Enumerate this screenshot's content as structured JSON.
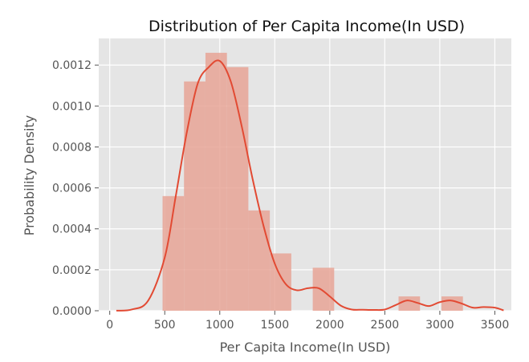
{
  "chart_data": {
    "type": "bar",
    "title": "Distribution of Per Capita Income(In USD)",
    "xlabel": "Per Capita Income(In USD)",
    "ylabel": "Probability Density",
    "xlim": [
      -100,
      3650
    ],
    "ylim": [
      0,
      0.00133
    ],
    "x_ticks": [
      0,
      500,
      1000,
      1500,
      2000,
      2500,
      3000,
      3500
    ],
    "x_tick_labels": [
      "0",
      "500",
      "1000",
      "1500",
      "2000",
      "2500",
      "3000",
      "3500"
    ],
    "y_ticks": [
      0,
      0.0002,
      0.0004,
      0.0006,
      0.0008,
      0.001,
      0.0012
    ],
    "y_tick_labels": [
      "0.0000",
      "0.0002",
      "0.0004",
      "0.0006",
      "0.0008",
      "0.0010",
      "0.0012"
    ],
    "grid": true,
    "histogram": {
      "bin_edges": [
        480,
        675,
        870,
        1065,
        1260,
        1455,
        1650,
        1845,
        2040,
        2235,
        2430,
        2625,
        2820,
        3015,
        3210
      ],
      "values": [
        0.00056,
        0.00112,
        0.00126,
        0.00119,
        0.00049,
        0.00028,
        0,
        0.00021,
        0,
        0,
        0,
        7e-05,
        0,
        7e-05
      ]
    },
    "kde": {
      "x": [
        60,
        200,
        350,
        500,
        600,
        700,
        800,
        900,
        1000,
        1100,
        1200,
        1300,
        1400,
        1500,
        1600,
        1700,
        1800,
        1900,
        2000,
        2100,
        2200,
        2300,
        2400,
        2500,
        2600,
        2700,
        2800,
        2900,
        3000,
        3100,
        3200,
        3300,
        3400,
        3500,
        3580
      ],
      "y": [
        5e-07,
        6e-06,
        5e-05,
        0.00026,
        0.00056,
        0.00087,
        0.00111,
        0.00119,
        0.00122,
        0.00112,
        0.0009,
        0.00064,
        0.00041,
        0.00023,
        0.00013,
        0.0001,
        0.00011,
        0.00011,
        7e-05,
        2.5e-05,
        6e-06,
        5e-06,
        4e-06,
        6e-06,
        2.8e-05,
        5e-05,
        3.8e-05,
        2.3e-05,
        4.2e-05,
        5e-05,
        3.5e-05,
        1.5e-05,
        1.8e-05,
        1.5e-05,
        2e-06
      ]
    },
    "colors": {
      "background": "#e5e5e5",
      "bar_fill": "#e8a596",
      "line": "#e24a33"
    }
  }
}
